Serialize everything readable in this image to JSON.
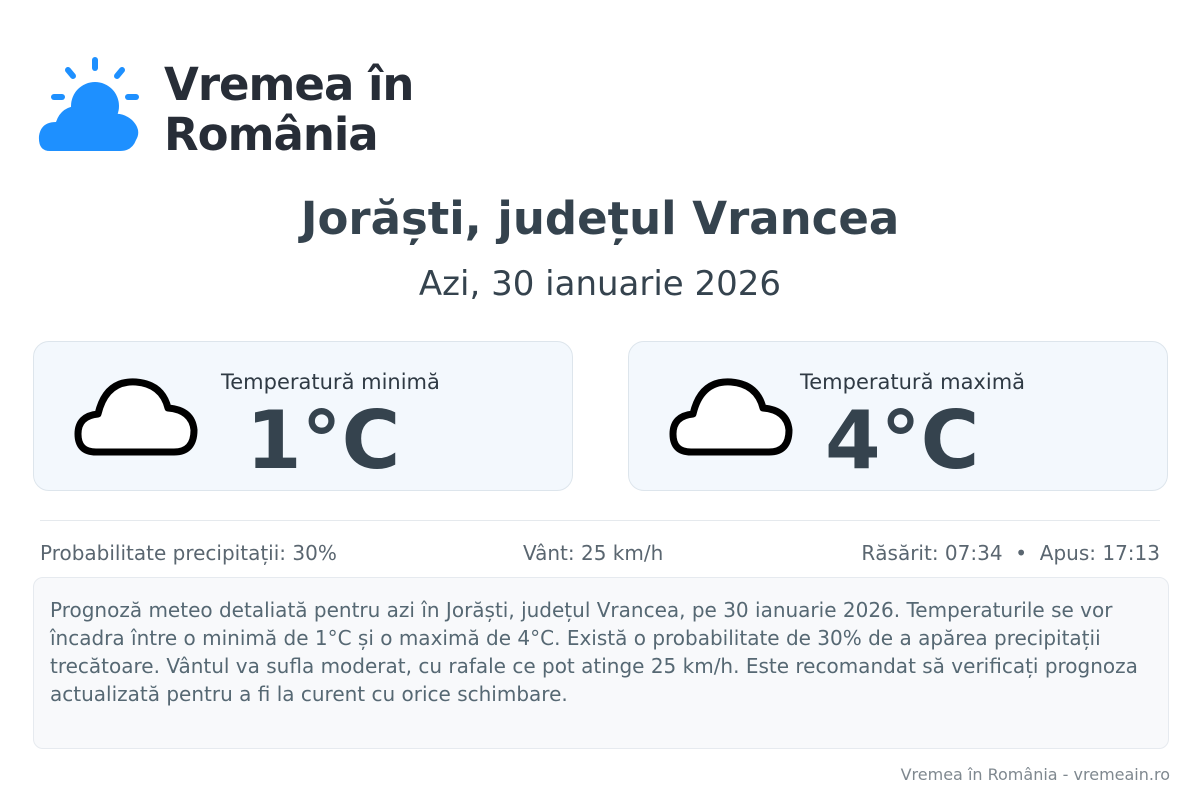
{
  "logo": {
    "text": "Vremea în România",
    "color": "#1e90ff"
  },
  "header": {
    "title": "Jorăști, județul Vrancea",
    "date": "Azi, 30 ianuarie 2026"
  },
  "cards": [
    {
      "label": "Temperatură minimă",
      "value": "1°C",
      "icon": "cloud-icon"
    },
    {
      "label": "Temperatură maximă",
      "value": "4°C",
      "icon": "cloud-icon"
    }
  ],
  "stats": {
    "precip": "Probabilitate precipitații: 30%",
    "wind": "Vânt: 25 km/h",
    "sun": "Răsărit: 07:34  •  Apus: 17:13"
  },
  "description": "Prognoză meteo detaliată pentru azi în Jorăști, județul Vrancea, pe 30 ianuarie 2026. Temperaturile se vor încadra între o minimă de 1°C și o maximă de 4°C. Există o probabilitate de 30% de a apărea precipitații trecătoare. Vântul va sufla moderat, cu rafale ce pot atinge 25 km/h. Este recomandat să verificați prognoza actualizată pentru a fi la curent cu orice schimbare.",
  "footer": "Vremea în România - vremeain.ro"
}
